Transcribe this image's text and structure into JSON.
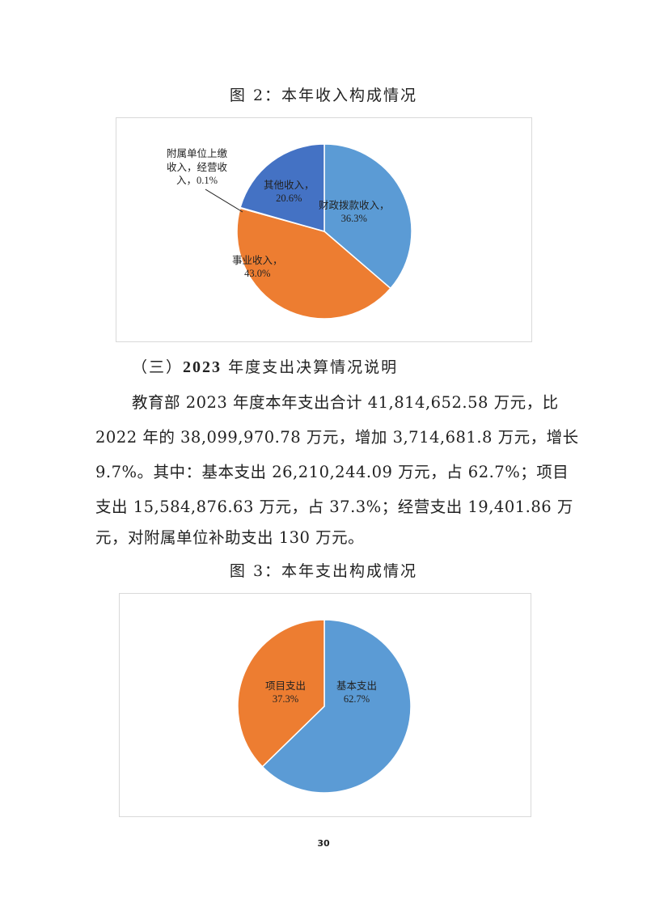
{
  "figure2": {
    "caption": "图 2：本年收入构成情况",
    "labels": [
      {
        "text": "财政拨款收入，",
        "pct": "36.3%"
      },
      {
        "text": "事业收入，",
        "pct": "43.0%"
      },
      {
        "text": "附属单位上缴|收入，经营收|入，",
        "pct": "0.1%"
      },
      {
        "text": "其他收入，",
        "pct": "20.6%"
      }
    ]
  },
  "section": {
    "heading_prefix": "（三）",
    "heading_year": "2023",
    "heading_rest": "年度支出决算情况说明",
    "lines": [
      "教育部 2023 年度本年支出合计 41,814,652.58 万元，比",
      "2022 年的 38,099,970.78 万元，增加 3,714,681.8 万元，增长",
      "9.7%。其中：基本支出 26,210,244.09 万元，占 62.7%；项目",
      "支出 15,584,876.63 万元，占 37.3%；经营支出 19,401.86 万",
      "元，对附属单位补助支出 130 万元。"
    ]
  },
  "figure3": {
    "caption": "图 3：本年支出构成情况",
    "labels": [
      {
        "text": "基本支出",
        "pct": "62.7%"
      },
      {
        "text": "项目支出",
        "pct": "37.3%"
      }
    ]
  },
  "page_number": "30",
  "chart_data": [
    {
      "type": "pie",
      "title": "图 2：本年收入构成情况",
      "categories": [
        "财政拨款收入",
        "事业收入",
        "附属单位上缴收入，经营收入",
        "其他收入"
      ],
      "values": [
        36.3,
        43.0,
        0.1,
        20.6
      ],
      "colors": [
        "#5B9BD5",
        "#ED7D31",
        "#A5A5A5",
        "#4472C4"
      ],
      "start": "top",
      "direction": "clockwise"
    },
    {
      "type": "pie",
      "title": "图 3：本年支出构成情况",
      "categories": [
        "基本支出",
        "项目支出"
      ],
      "values": [
        62.7,
        37.3
      ],
      "colors": [
        "#5B9BD5",
        "#ED7D31"
      ],
      "start": "top",
      "direction": "clockwise"
    }
  ]
}
